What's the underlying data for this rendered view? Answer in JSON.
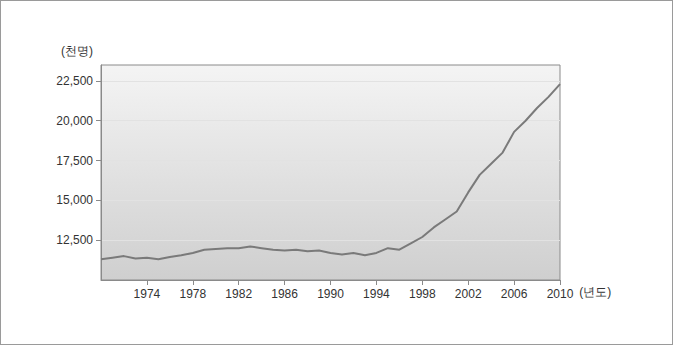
{
  "chart_data": {
    "type": "line",
    "y_label": "(천명)",
    "x_label": "(년도)",
    "x": [
      1970,
      1971,
      1972,
      1973,
      1974,
      1975,
      1976,
      1977,
      1978,
      1979,
      1980,
      1981,
      1982,
      1983,
      1984,
      1985,
      1986,
      1987,
      1988,
      1989,
      1990,
      1991,
      1992,
      1993,
      1994,
      1995,
      1996,
      1997,
      1998,
      1999,
      2000,
      2001,
      2002,
      2003,
      2004,
      2005,
      2006,
      2007,
      2008,
      2009,
      2010
    ],
    "values": [
      11300,
      11400,
      11500,
      11350,
      11400,
      11300,
      11450,
      11550,
      11700,
      11900,
      11950,
      12000,
      12000,
      12100,
      12000,
      11900,
      11850,
      11900,
      11800,
      11850,
      11700,
      11600,
      11700,
      11550,
      11700,
      12000,
      11900,
      12300,
      12700,
      13300,
      13800,
      14300,
      15500,
      16600,
      17300,
      18000,
      19300,
      20000,
      20800,
      21500,
      22300
    ],
    "color": "#7a7a7a",
    "xlim": [
      1970,
      2010
    ],
    "xticks": [
      1974,
      1978,
      1982,
      1986,
      1990,
      1994,
      1998,
      2002,
      2006,
      2010
    ],
    "ylim": [
      10000,
      23500
    ],
    "yticks": [
      {
        "value": 12500,
        "label": "12,500"
      },
      {
        "value": 15000,
        "label": "15,000"
      },
      {
        "value": 17500,
        "label": "17,500"
      },
      {
        "value": 20000,
        "label": "20,000"
      },
      {
        "value": 22500,
        "label": "22,500"
      }
    ],
    "grid": true
  }
}
